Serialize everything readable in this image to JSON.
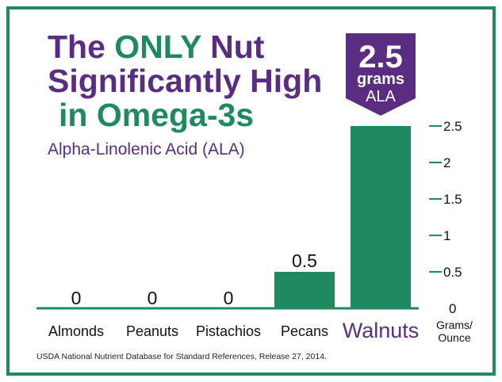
{
  "title": {
    "pre": "The ",
    "highlight": "ONLY",
    "post": " Nut",
    "line2": "Significantly High",
    "line3": "in Omega-3s"
  },
  "subtitle": "Alpha-Linolenic Acid (ALA)",
  "callout": {
    "value": "2.5",
    "unit": "grams",
    "label": "ALA"
  },
  "source": "USDA National Nutrient Database for Standard References, Release 27, 2014.",
  "colors": {
    "green": "#1f8a5f",
    "purple": "#5a2d82",
    "axis": "#1f8a5f"
  },
  "chart_data": {
    "type": "bar",
    "categories": [
      "Almonds",
      "Peanuts",
      "Pistachios",
      "Pecans",
      "Walnuts"
    ],
    "values": [
      0,
      0,
      0,
      0.5,
      2.5
    ],
    "value_labels": [
      "0",
      "0",
      "0",
      "0.5",
      ""
    ],
    "highlight_category": "Walnuts",
    "y_ticks": [
      0,
      0.5,
      1,
      1.5,
      2,
      2.5
    ],
    "y_tick_labels": [
      "0",
      "0.5",
      "1",
      "1.5",
      "2",
      "2.5"
    ],
    "ylim": [
      0,
      2.5
    ],
    "ylabel_line1": "Grams/",
    "ylabel_line2": "Ounce",
    "grid": false
  }
}
